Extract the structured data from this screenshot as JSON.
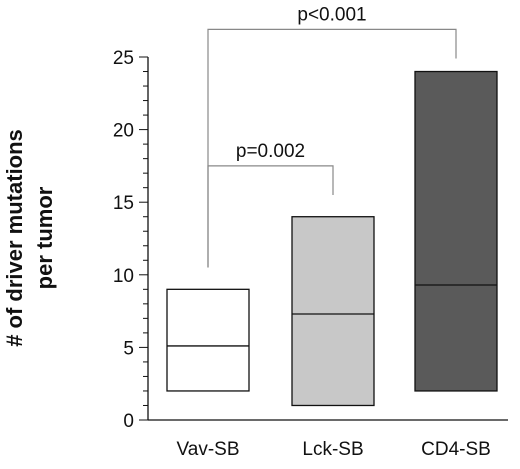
{
  "chart_data": {
    "type": "box",
    "ylabel_lines": [
      "# of driver mutations",
      "per tumor"
    ],
    "ylim": [
      0,
      25
    ],
    "yticks": [
      0,
      5,
      10,
      15,
      20,
      25
    ],
    "minor_tick_step": 1,
    "grid": false,
    "legend": "none",
    "categories": [
      "Vav-SB",
      "Lck-SB",
      "CD4-SB"
    ],
    "boxes": [
      {
        "category": "Vav-SB",
        "min": 2,
        "median": 5.1,
        "max": 9,
        "color": "#ffffff"
      },
      {
        "category": "Lck-SB",
        "min": 1,
        "median": 7.3,
        "max": 14,
        "color": "#c8c8c8"
      },
      {
        "category": "CD4-SB",
        "min": 2,
        "median": 9.3,
        "max": 24,
        "color": "#5a5a5a"
      }
    ],
    "comparisons": [
      {
        "from": "Vav-SB",
        "to": "Lck-SB",
        "label": "p=0.002",
        "from_y": 10.5,
        "to_y": 15.5,
        "bracket_y": 17.5
      },
      {
        "from": "Vav-SB",
        "to": "CD4-SB",
        "label": "p<0.001",
        "from_y": 10.5,
        "to_y": 24.9,
        "bracket_y": 26.9
      }
    ]
  }
}
